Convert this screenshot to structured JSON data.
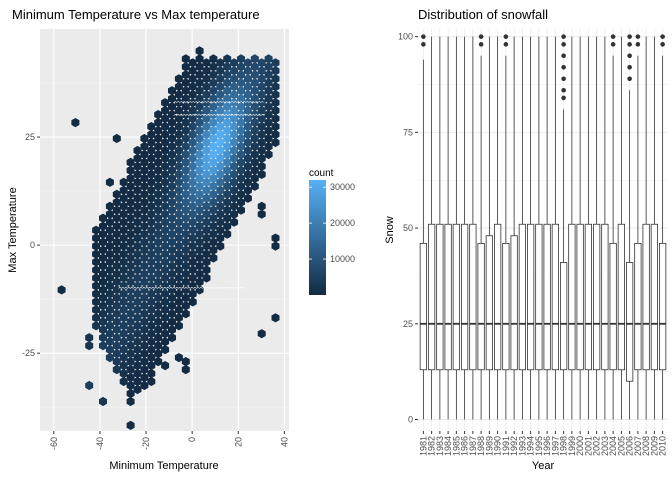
{
  "chart_data": [
    {
      "type": "hexbin",
      "title": "Minimum Temperature vs Max temperature",
      "xlabel": "Minimum Temperature",
      "ylabel": "Max Temperature",
      "xlim": [
        -66,
        42
      ],
      "ylim": [
        -43,
        50
      ],
      "x_ticks": [
        -60,
        -40,
        -20,
        0,
        20,
        40
      ],
      "y_ticks": [
        -25,
        0,
        25
      ],
      "grid": true,
      "legend": {
        "title": "count",
        "range": [
          1,
          32000
        ],
        "labels": [
          10000,
          20000,
          30000
        ],
        "low_color": "#132B43",
        "high_color": "#56B1F7",
        "placement": "right"
      }
    },
    {
      "type": "boxplot",
      "title": "Distribution of snowfall",
      "xlabel": "Year",
      "ylabel": "Snow",
      "ylim": [
        -3,
        102
      ],
      "y_ticks": [
        0,
        25,
        50,
        75,
        100
      ],
      "grid": true,
      "categories": [
        "1981",
        "1982",
        "1983",
        "1984",
        "1985",
        "1986",
        "1987",
        "1988",
        "1989",
        "1990",
        "1991",
        "1992",
        "1993",
        "1994",
        "1995",
        "1996",
        "1997",
        "1998",
        "1999",
        "2000",
        "2001",
        "2002",
        "2003",
        "2004",
        "2005",
        "2006",
        "2007",
        "2008",
        "2009",
        "2010"
      ],
      "boxes": [
        {
          "q1": 13,
          "median": 25,
          "q3": 46,
          "whisker_low": 0,
          "whisker_high": 94,
          "outliers": [
            100,
            98
          ]
        },
        {
          "q1": 13,
          "median": 25,
          "q3": 51,
          "whisker_low": 0,
          "whisker_high": 100,
          "outliers": []
        },
        {
          "q1": 13,
          "median": 25,
          "q3": 51,
          "whisker_low": 0,
          "whisker_high": 100,
          "outliers": []
        },
        {
          "q1": 13,
          "median": 25,
          "q3": 51,
          "whisker_low": 0,
          "whisker_high": 100,
          "outliers": []
        },
        {
          "q1": 13,
          "median": 25,
          "q3": 51,
          "whisker_low": 0,
          "whisker_high": 100,
          "outliers": []
        },
        {
          "q1": 13,
          "median": 25,
          "q3": 51,
          "whisker_low": 0,
          "whisker_high": 100,
          "outliers": []
        },
        {
          "q1": 13,
          "median": 25,
          "q3": 51,
          "whisker_low": 0,
          "whisker_high": 100,
          "outliers": []
        },
        {
          "q1": 13,
          "median": 25,
          "q3": 46,
          "whisker_low": 0,
          "whisker_high": 95,
          "outliers": [
            100,
            98
          ]
        },
        {
          "q1": 13,
          "median": 25,
          "q3": 48,
          "whisker_low": 0,
          "whisker_high": 100,
          "outliers": []
        },
        {
          "q1": 13,
          "median": 25,
          "q3": 51,
          "whisker_low": 0,
          "whisker_high": 100,
          "outliers": []
        },
        {
          "q1": 13,
          "median": 25,
          "q3": 46,
          "whisker_low": 0,
          "whisker_high": 95,
          "outliers": [
            100,
            98
          ]
        },
        {
          "q1": 13,
          "median": 25,
          "q3": 48,
          "whisker_low": 0,
          "whisker_high": 100,
          "outliers": []
        },
        {
          "q1": 13,
          "median": 25,
          "q3": 51,
          "whisker_low": 0,
          "whisker_high": 100,
          "outliers": []
        },
        {
          "q1": 13,
          "median": 25,
          "q3": 51,
          "whisker_low": 0,
          "whisker_high": 100,
          "outliers": []
        },
        {
          "q1": 13,
          "median": 25,
          "q3": 51,
          "whisker_low": 0,
          "whisker_high": 100,
          "outliers": []
        },
        {
          "q1": 13,
          "median": 25,
          "q3": 51,
          "whisker_low": 0,
          "whisker_high": 100,
          "outliers": []
        },
        {
          "q1": 13,
          "median": 25,
          "q3": 51,
          "whisker_low": 0,
          "whisker_high": 100,
          "outliers": []
        },
        {
          "q1": 13,
          "median": 25,
          "q3": 41,
          "whisker_low": 0,
          "whisker_high": 81,
          "outliers": [
            100,
            98,
            95,
            92,
            89,
            86,
            84
          ]
        },
        {
          "q1": 13,
          "median": 25,
          "q3": 51,
          "whisker_low": 0,
          "whisker_high": 100,
          "outliers": []
        },
        {
          "q1": 13,
          "median": 25,
          "q3": 51,
          "whisker_low": 0,
          "whisker_high": 100,
          "outliers": []
        },
        {
          "q1": 13,
          "median": 25,
          "q3": 51,
          "whisker_low": 0,
          "whisker_high": 100,
          "outliers": []
        },
        {
          "q1": 13,
          "median": 25,
          "q3": 51,
          "whisker_low": 0,
          "whisker_high": 100,
          "outliers": []
        },
        {
          "q1": 13,
          "median": 25,
          "q3": 51,
          "whisker_low": 0,
          "whisker_high": 100,
          "outliers": []
        },
        {
          "q1": 13,
          "median": 25,
          "q3": 46,
          "whisker_low": 0,
          "whisker_high": 95,
          "outliers": [
            100,
            98
          ]
        },
        {
          "q1": 13,
          "median": 25,
          "q3": 51,
          "whisker_low": 0,
          "whisker_high": 100,
          "outliers": []
        },
        {
          "q1": 10,
          "median": 25,
          "q3": 41,
          "whisker_low": 0,
          "whisker_high": 86,
          "outliers": [
            100,
            98,
            95,
            92,
            89
          ]
        },
        {
          "q1": 13,
          "median": 25,
          "q3": 46,
          "whisker_low": 0,
          "whisker_high": 95,
          "outliers": [
            100,
            98
          ]
        },
        {
          "q1": 13,
          "median": 25,
          "q3": 51,
          "whisker_low": 0,
          "whisker_high": 100,
          "outliers": []
        },
        {
          "q1": 13,
          "median": 25,
          "q3": 51,
          "whisker_low": 0,
          "whisker_high": 100,
          "outliers": []
        },
        {
          "q1": 13,
          "median": 25,
          "q3": 46,
          "whisker_low": 0,
          "whisker_high": 95,
          "outliers": [
            100,
            98
          ]
        }
      ]
    }
  ]
}
